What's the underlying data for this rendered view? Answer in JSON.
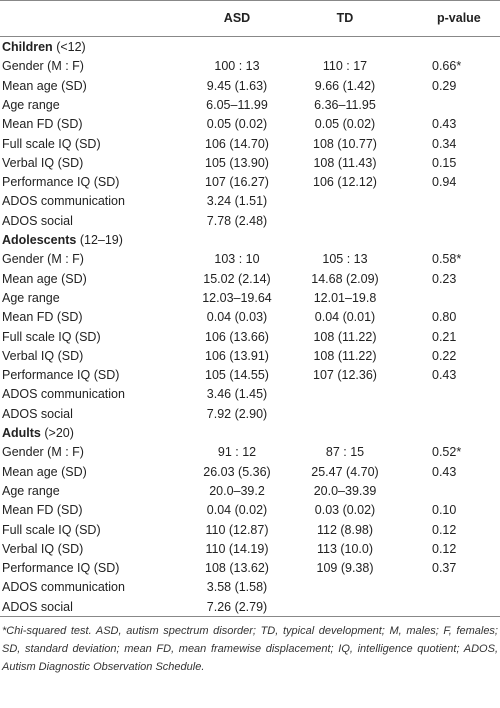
{
  "table": {
    "header": [
      "ASD",
      "TD",
      "p-value"
    ],
    "sections": [
      {
        "title": "Children",
        "range": "(<12)",
        "rows": [
          [
            "Gender (M : F)",
            "100 : 13",
            "110 : 17",
            "0.66*"
          ],
          [
            "Mean age (SD)",
            "9.45 (1.63)",
            "9.66 (1.42)",
            "0.29"
          ],
          [
            "Age range",
            "6.05–11.99",
            "6.36–11.95"
          ],
          [
            "Mean FD (SD)",
            "0.05 (0.02)",
            "0.05 (0.02)",
            "0.43"
          ],
          [
            "Full scale IQ (SD)",
            "106 (14.70)",
            "108 (10.77)",
            "0.34"
          ],
          [
            "Verbal IQ (SD)",
            "105 (13.90)",
            "108 (11.43)",
            "0.15"
          ],
          [
            "Performance IQ (SD)",
            "107 (16.27)",
            "106 (12.12)",
            "0.94"
          ],
          [
            "ADOS communication",
            "3.24 (1.51)"
          ],
          [
            "ADOS social",
            "7.78 (2.48)"
          ]
        ]
      },
      {
        "title": "Adolescents",
        "range": "(12–19)",
        "rows": [
          [
            "Gender (M : F)",
            "103 : 10",
            "105 : 13",
            "0.58*"
          ],
          [
            "Mean age (SD)",
            "15.02 (2.14)",
            "14.68 (2.09)",
            "0.23"
          ],
          [
            "Age range",
            "12.03–19.64",
            "12.01–19.8"
          ],
          [
            "Mean FD (SD)",
            "0.04 (0.03)",
            "0.04 (0.01)",
            "0.80"
          ],
          [
            "Full scale IQ (SD)",
            "106 (13.66)",
            "108 (11.22)",
            "0.21"
          ],
          [
            "Verbal IQ (SD)",
            "106 (13.91)",
            "108 (11.22)",
            "0.22"
          ],
          [
            "Performance IQ (SD)",
            "105 (14.55)",
            "107 (12.36)",
            "0.43"
          ],
          [
            "ADOS communication",
            "3.46 (1.45)"
          ],
          [
            "ADOS social",
            "7.92 (2.90)"
          ]
        ]
      },
      {
        "title": "Adults",
        "range": "(>20)",
        "rows": [
          [
            "Gender (M : F)",
            "91 : 12",
            "87 : 15",
            "0.52*"
          ],
          [
            "Mean age (SD)",
            "26.03 (5.36)",
            "25.47 (4.70)",
            "0.43"
          ],
          [
            "Age range",
            "20.0–39.2",
            "20.0–39.39"
          ],
          [
            "Mean FD (SD)",
            "0.04 (0.02)",
            "0.03 (0.02)",
            "0.10"
          ],
          [
            "Full scale IQ (SD)",
            "110 (12.87)",
            "112 (8.98)",
            "0.12"
          ],
          [
            "Verbal IQ (SD)",
            "110 (14.19)",
            "113 (10.0)",
            "0.12"
          ],
          [
            "Performance IQ (SD)",
            "108 (13.62)",
            "109 (9.38)",
            "0.37"
          ],
          [
            "ADOS communication",
            "3.58 (1.58)"
          ],
          [
            "ADOS social",
            "7.26 (2.79)"
          ]
        ]
      }
    ],
    "footnote": "*Chi-squared test. ASD, autism spectrum disorder; TD, typical development; M, males; F, females; SD, standard deviation; mean FD, mean framewise displacement; IQ, intelligence quotient; ADOS, Autism Diagnostic Observation Schedule."
  }
}
